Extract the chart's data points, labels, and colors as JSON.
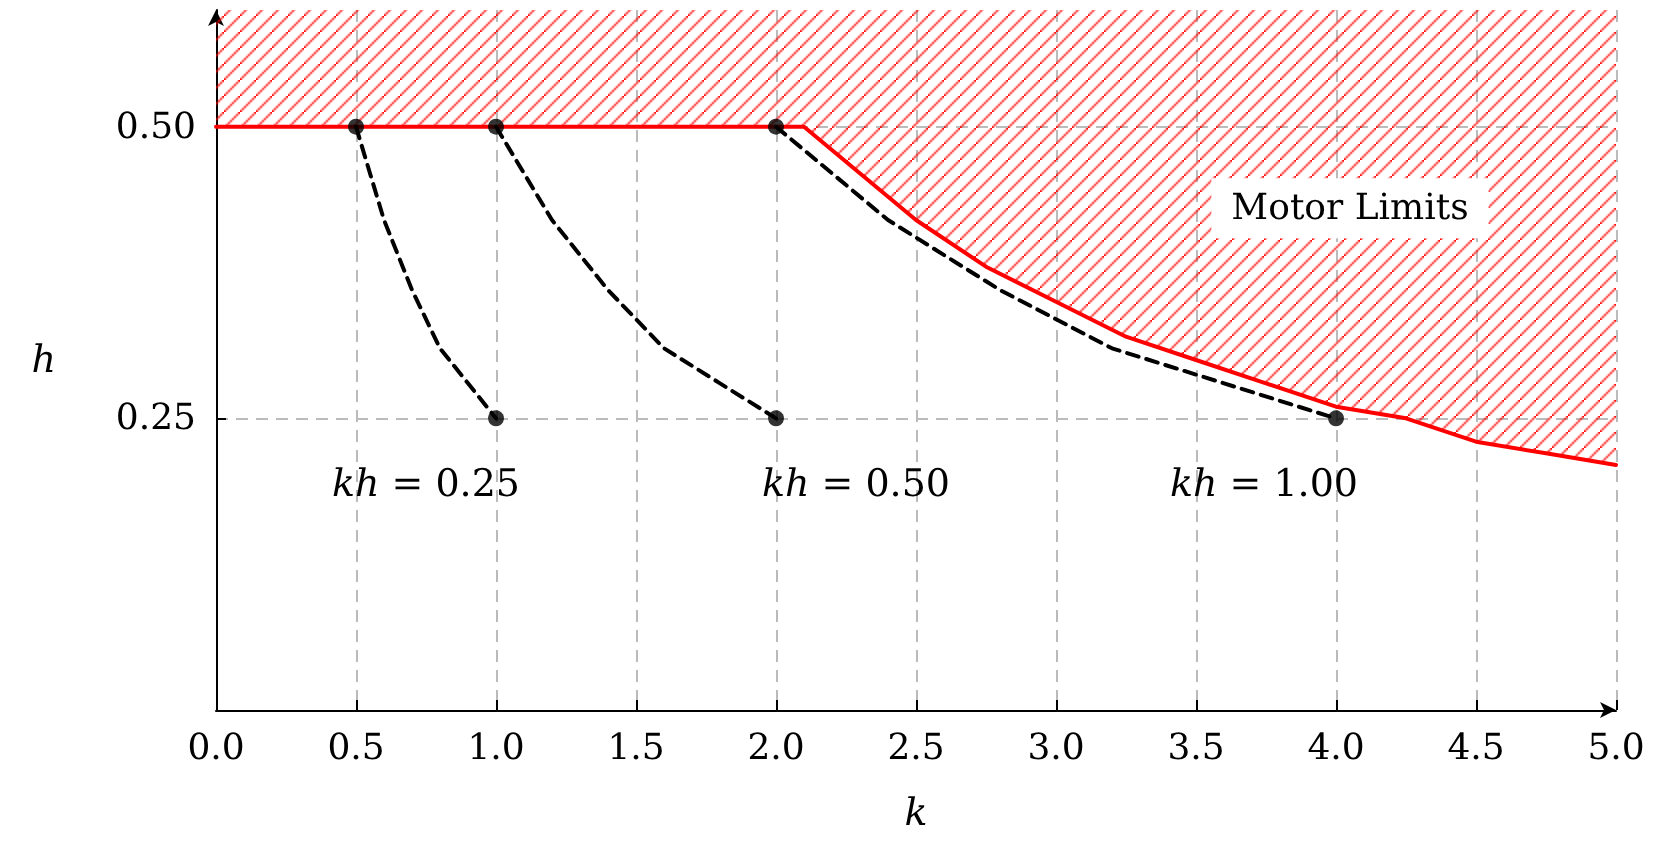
{
  "chart_data": {
    "type": "line",
    "xlabel": "k",
    "ylabel": "h",
    "xlim": [
      0,
      5
    ],
    "ylim": [
      0,
      0.6
    ],
    "xticks": [
      {
        "value": 0,
        "label": "0.0"
      },
      {
        "value": 0.5,
        "label": "0.5"
      },
      {
        "value": 1,
        "label": "1.0"
      },
      {
        "value": 1.5,
        "label": "1.5"
      },
      {
        "value": 2,
        "label": "2.0"
      },
      {
        "value": 2.5,
        "label": "2.5"
      },
      {
        "value": 3,
        "label": "3.0"
      },
      {
        "value": 3.5,
        "label": "3.5"
      },
      {
        "value": 4,
        "label": "4.0"
      },
      {
        "value": 4.5,
        "label": "4.5"
      },
      {
        "value": 5,
        "label": "5.0"
      }
    ],
    "yticks": [
      0.25,
      {
        "value": 0.5,
        "label": "0.50"
      }
    ],
    "grid": true,
    "legend": false,
    "series": [
      {
        "name": "Motor Limits",
        "color": "#ff0000",
        "marker": "none",
        "line_style": "solid",
        "x": [
          0,
          2.1,
          2.25,
          2.5,
          2.75,
          3,
          3.25,
          3.5,
          3.75,
          4,
          4.25,
          4.5,
          4.75,
          5
        ],
        "values": [
          0.5,
          0.5,
          0.47,
          0.42,
          0.38,
          0.35,
          0.32,
          0.3,
          0.28,
          0.26,
          0.25,
          0.23,
          0.22,
          0.21
        ],
        "lower": [
          0.5,
          0.5,
          0.47,
          0.42,
          0.38,
          0.35,
          0.32,
          0.3,
          0.28,
          0.26,
          0.25,
          0.23,
          0.22,
          0.21
        ],
        "upper": [
          0.6,
          0.6,
          0.6,
          0.6,
          0.6,
          0.6,
          0.6,
          0.6,
          0.6,
          0.6,
          0.6,
          0.6,
          0.6,
          0.6
        ]
      },
      {
        "color": "#000000",
        "marker": "none",
        "line_style": "dashed",
        "x": [
          0.5,
          0.6,
          0.7,
          0.8,
          0.9,
          1.0
        ],
        "values": [
          0.5,
          0.42,
          0.36,
          0.31,
          0.28,
          0.25
        ]
      },
      {
        "color": "#000000",
        "marker": "none",
        "line_style": "dashed",
        "x": [
          1,
          1.2,
          1.4,
          1.6,
          1.8,
          2
        ],
        "values": [
          0.5,
          0.42,
          0.36,
          0.31,
          0.28,
          0.25
        ]
      },
      {
        "color": "#000000",
        "marker": "none",
        "line_style": "dashed",
        "x": [
          2,
          2.4,
          2.8,
          3.2,
          3.6,
          4
        ],
        "values": [
          0.5,
          0.42,
          0.36,
          0.31,
          0.28,
          0.25
        ]
      },
      {
        "type": "scatter",
        "color": "#000000",
        "marker": "circle",
        "x": [
          0.5,
          1,
          1,
          2,
          2,
          4
        ],
        "values": [
          0.5,
          0.25,
          0.5,
          0.25,
          0.5,
          0.25
        ]
      }
    ],
    "annotations": [
      "kh = 0.25",
      "kh = 0.50",
      "kh = 1.00"
    ]
  }
}
